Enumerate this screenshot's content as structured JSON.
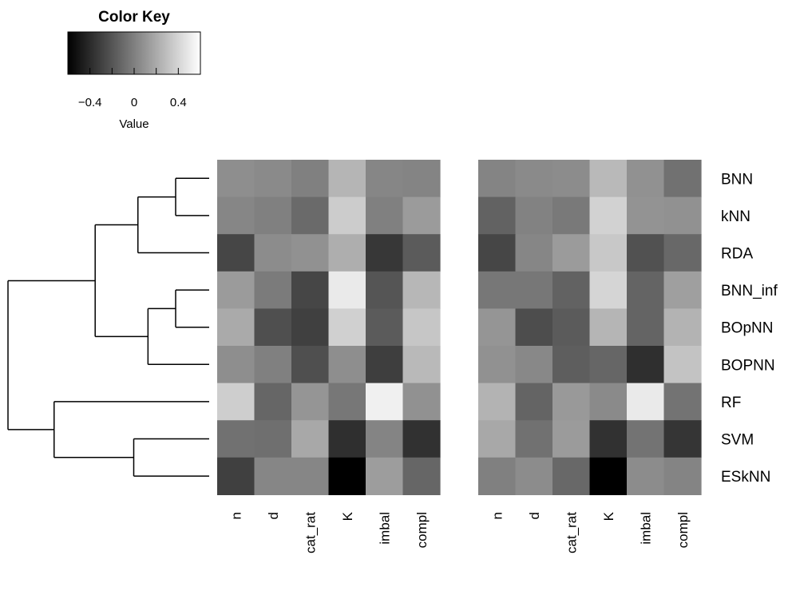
{
  "chart_data": {
    "type": "heatmap",
    "color_key": {
      "title": "Color Key",
      "xlabel": "Value",
      "ticks": [
        -0.4,
        0,
        0.4
      ],
      "tick_labels": [
        "−0.4",
        "0",
        "0.4"
      ],
      "range": [
        -0.6,
        0.6
      ],
      "minor_ticks": [
        -0.4,
        -0.2,
        0,
        0.2,
        0.4
      ],
      "colormap": [
        "#000000",
        "#ffffff"
      ]
    },
    "rows": [
      "BNN",
      "kNN",
      "RDA",
      "BNN_inf",
      "BOpNN",
      "BOPNN",
      "RF",
      "SVM",
      "ESkNN"
    ],
    "columns": [
      "n",
      "d",
      "cat_rat",
      "K",
      "imbal",
      "compl"
    ],
    "panels": [
      {
        "values": [
          [
            0.07,
            0.05,
            0.0,
            0.25,
            0.03,
            0.02
          ],
          [
            0.03,
            0.0,
            -0.1,
            0.36,
            0.0,
            0.13
          ],
          [
            -0.27,
            0.06,
            0.08,
            0.22,
            -0.34,
            -0.17
          ],
          [
            0.13,
            -0.02,
            -0.27,
            0.5,
            -0.2,
            0.26
          ],
          [
            0.2,
            -0.23,
            -0.3,
            0.38,
            -0.17,
            0.33
          ],
          [
            0.07,
            0.0,
            -0.23,
            0.07,
            -0.31,
            0.27
          ],
          [
            0.37,
            -0.12,
            0.1,
            -0.04,
            0.53,
            0.08
          ],
          [
            -0.07,
            -0.08,
            0.19,
            -0.38,
            0.02,
            -0.37
          ],
          [
            -0.3,
            0.03,
            0.03,
            -0.6,
            0.14,
            -0.12
          ]
        ]
      },
      {
        "values": [
          [
            0.02,
            0.05,
            0.06,
            0.27,
            0.08,
            -0.07
          ],
          [
            -0.14,
            0.01,
            -0.03,
            0.39,
            0.09,
            0.08
          ],
          [
            -0.27,
            0.03,
            0.13,
            0.34,
            -0.22,
            -0.11
          ],
          [
            -0.04,
            -0.04,
            -0.14,
            0.4,
            -0.13,
            0.15
          ],
          [
            0.1,
            -0.24,
            -0.17,
            0.25,
            -0.13,
            0.24
          ],
          [
            0.08,
            0.04,
            -0.16,
            -0.12,
            -0.38,
            0.32
          ],
          [
            0.24,
            -0.13,
            0.12,
            0.05,
            0.5,
            -0.06
          ],
          [
            0.19,
            -0.07,
            0.13,
            -0.37,
            -0.06,
            -0.35
          ],
          [
            0.0,
            0.06,
            -0.11,
            -0.6,
            0.06,
            0.02
          ]
        ]
      }
    ],
    "dendrogram": {
      "side": "left",
      "merges": [
        {
          "a": "BNN",
          "b": "kNN",
          "height": 0.4
        },
        {
          "a": "BNN_inf",
          "b": "BOpNN",
          "height": 0.4
        },
        {
          "a": "SVM",
          "b": "ESkNN",
          "height": 0.9
        },
        {
          "a": "BNN+kNN",
          "b": "RDA",
          "height": 0.85
        },
        {
          "a": "BNN_inf+BOpNN",
          "b": "BOPNN",
          "height": 0.73
        },
        {
          "a": "BNN+kNN+RDA",
          "b": "BNN_inf+BOpNN+BOPNN",
          "height": 1.36
        },
        {
          "a": "RF",
          "b": "SVM+ESkNN",
          "height": 1.85
        },
        {
          "a": "top",
          "b": "bottom",
          "height": 2.4
        }
      ]
    }
  }
}
